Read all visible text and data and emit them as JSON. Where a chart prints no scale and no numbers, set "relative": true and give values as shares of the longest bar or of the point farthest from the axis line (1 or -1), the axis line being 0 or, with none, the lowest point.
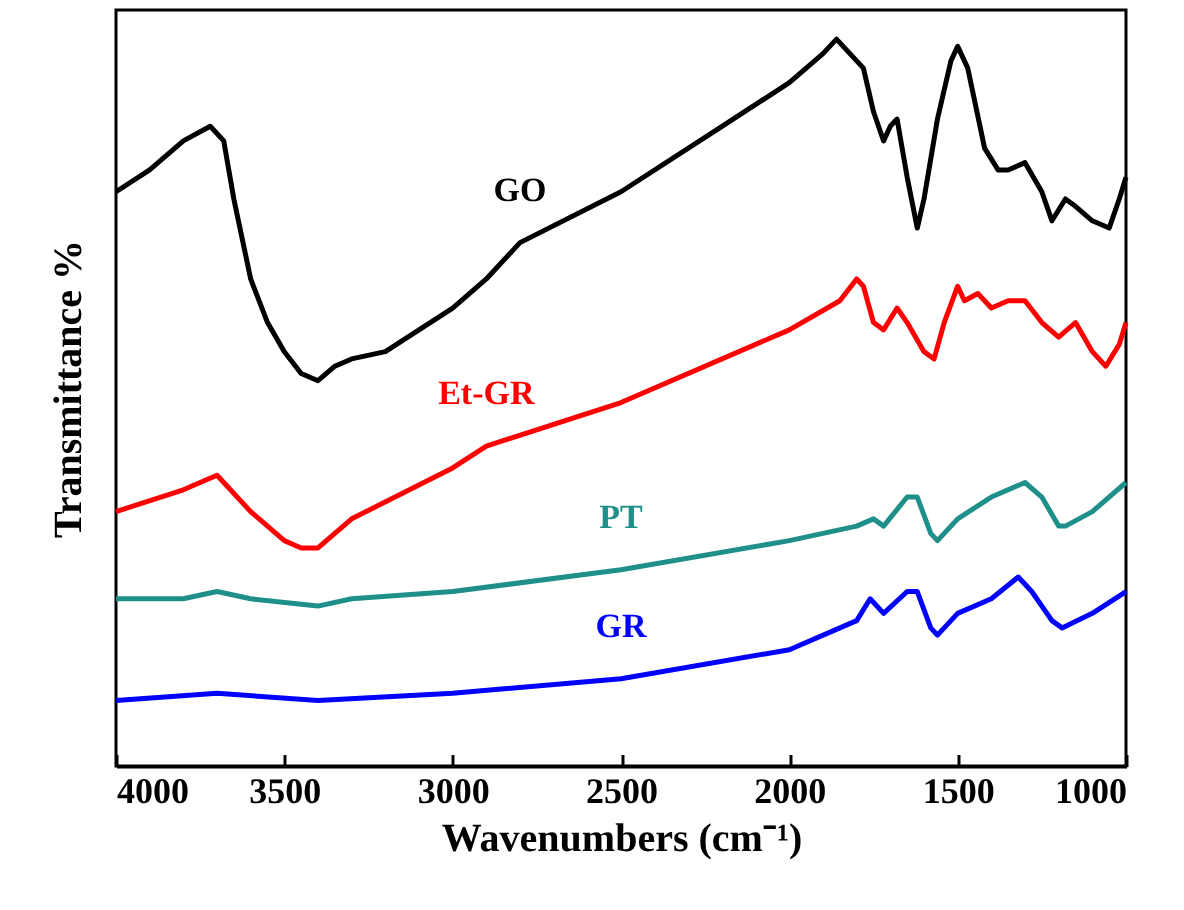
{
  "chart_data": {
    "type": "line",
    "relative": true,
    "xlabel": "Wavenumbers (cm⁻¹)",
    "ylabel": "Transmittance %",
    "xlim": [
      4000,
      1000
    ],
    "xticks": [
      4000,
      3500,
      3000,
      2500,
      2000,
      1500,
      1000
    ],
    "series": [
      {
        "name": "GO",
        "color": "#000000",
        "x": [
          4000,
          3900,
          3800,
          3720,
          3680,
          3650,
          3600,
          3550,
          3500,
          3450,
          3400,
          3350,
          3300,
          3200,
          3000,
          2900,
          2800,
          2500,
          2200,
          2000,
          1900,
          1860,
          1820,
          1780,
          1750,
          1720,
          1700,
          1680,
          1650,
          1620,
          1600,
          1560,
          1520,
          1500,
          1470,
          1420,
          1380,
          1350,
          1300,
          1250,
          1220,
          1180,
          1150,
          1100,
          1050,
          1020,
          1000
        ],
        "values": [
          0.79,
          0.82,
          0.86,
          0.88,
          0.86,
          0.78,
          0.67,
          0.61,
          0.57,
          0.54,
          0.53,
          0.55,
          0.56,
          0.57,
          0.63,
          0.67,
          0.72,
          0.79,
          0.88,
          0.94,
          0.98,
          1.0,
          0.98,
          0.96,
          0.9,
          0.86,
          0.88,
          0.89,
          0.81,
          0.74,
          0.78,
          0.89,
          0.97,
          0.99,
          0.96,
          0.85,
          0.82,
          0.82,
          0.83,
          0.79,
          0.75,
          0.78,
          0.77,
          0.75,
          0.74,
          0.78,
          0.81
        ]
      },
      {
        "name": "Et-GR",
        "color": "#ff0000",
        "x": [
          4000,
          3800,
          3700,
          3680,
          3600,
          3500,
          3450,
          3400,
          3300,
          3000,
          2900,
          2500,
          2000,
          1850,
          1800,
          1780,
          1750,
          1720,
          1680,
          1650,
          1600,
          1570,
          1540,
          1500,
          1480,
          1440,
          1400,
          1350,
          1300,
          1250,
          1200,
          1150,
          1100,
          1060,
          1020,
          1000
        ],
        "values": [
          0.35,
          0.38,
          0.4,
          0.39,
          0.35,
          0.31,
          0.3,
          0.3,
          0.34,
          0.41,
          0.44,
          0.5,
          0.6,
          0.64,
          0.67,
          0.66,
          0.61,
          0.6,
          0.63,
          0.61,
          0.57,
          0.56,
          0.61,
          0.66,
          0.64,
          0.65,
          0.63,
          0.64,
          0.64,
          0.61,
          0.59,
          0.61,
          0.57,
          0.55,
          0.58,
          0.61
        ]
      },
      {
        "name": "PT",
        "color": "#1f8f8a",
        "x": [
          4000,
          3800,
          3700,
          3600,
          3400,
          3300,
          3000,
          2500,
          2000,
          1800,
          1750,
          1720,
          1650,
          1620,
          1580,
          1560,
          1500,
          1400,
          1300,
          1250,
          1200,
          1180,
          1100,
          1000
        ],
        "values": [
          0.23,
          0.23,
          0.24,
          0.23,
          0.22,
          0.23,
          0.24,
          0.27,
          0.31,
          0.33,
          0.34,
          0.33,
          0.37,
          0.37,
          0.32,
          0.31,
          0.34,
          0.37,
          0.39,
          0.37,
          0.33,
          0.33,
          0.35,
          0.39
        ]
      },
      {
        "name": "GR",
        "color": "#0000ff",
        "x": [
          4000,
          3700,
          3400,
          3000,
          2500,
          2000,
          1800,
          1760,
          1720,
          1650,
          1620,
          1580,
          1560,
          1500,
          1400,
          1320,
          1280,
          1220,
          1190,
          1100,
          1000
        ],
        "values": [
          0.09,
          0.1,
          0.09,
          0.1,
          0.12,
          0.16,
          0.2,
          0.23,
          0.21,
          0.24,
          0.24,
          0.19,
          0.18,
          0.21,
          0.23,
          0.26,
          0.24,
          0.2,
          0.19,
          0.21,
          0.24
        ]
      }
    ]
  }
}
